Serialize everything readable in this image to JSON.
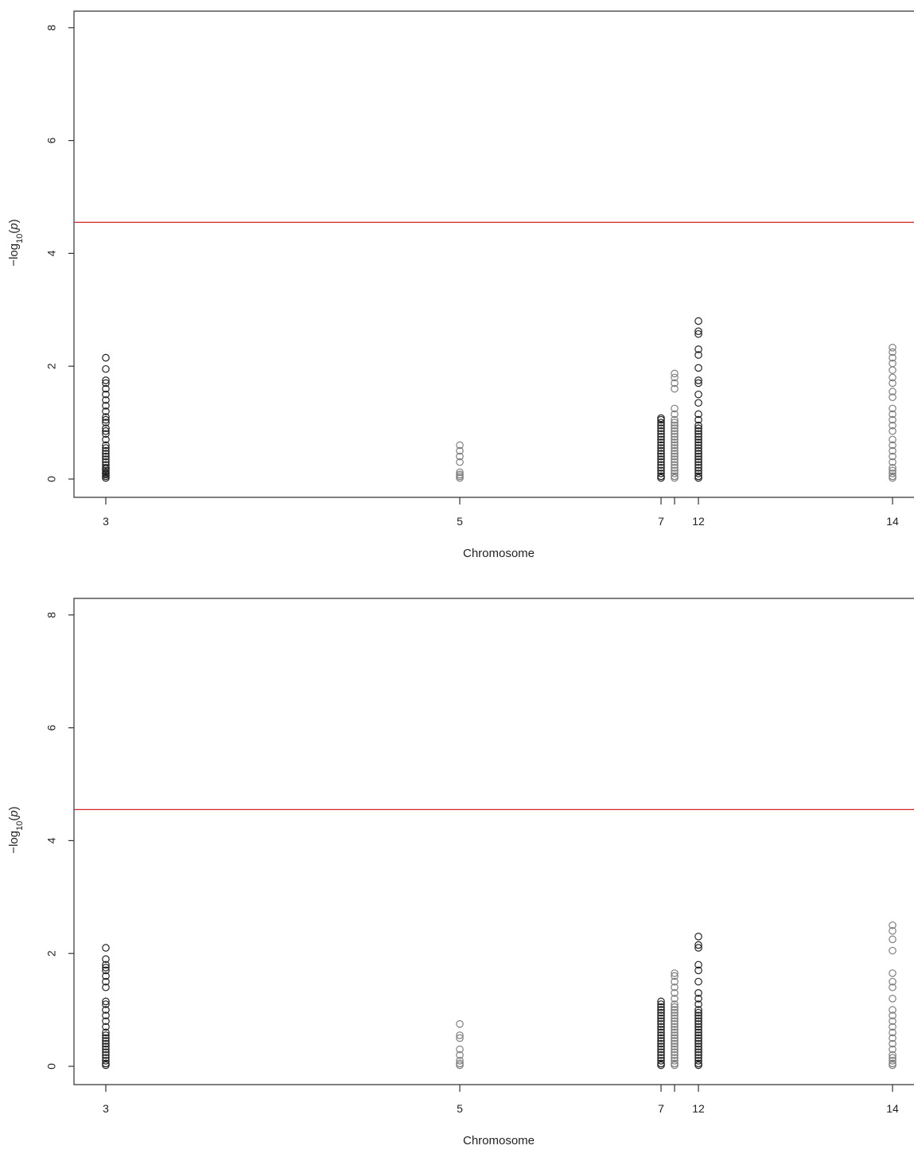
{
  "chart_data": [
    {
      "type": "scatter",
      "subtype": "manhattan",
      "xlabel": "Chromosome",
      "ylabel": "-log10(p)",
      "ylim": [
        0,
        8.3
      ],
      "y_ticks": [
        "0",
        "2",
        "4",
        "6",
        "8"
      ],
      "x_ticks": [
        "3",
        "5",
        "7",
        "",
        "12",
        "14"
      ],
      "threshold": 4.55,
      "threshold_color": "#d62728",
      "series": [
        {
          "chromosome": "3",
          "color": "#222222",
          "values": [
            0.02,
            0.05,
            0.08,
            0.1,
            0.12,
            0.15,
            0.18,
            0.2,
            0.25,
            0.3,
            0.35,
            0.4,
            0.45,
            0.5,
            0.55,
            0.6,
            0.7,
            0.8,
            0.85,
            0.9,
            1.0,
            1.05,
            1.1,
            1.2,
            1.3,
            1.4,
            1.5,
            1.6,
            1.7,
            1.75,
            1.95,
            2.15
          ]
        },
        {
          "chromosome": "5",
          "color": "#7f7f7f",
          "values": [
            0.02,
            0.05,
            0.08,
            0.12,
            0.3,
            0.4,
            0.5,
            0.6
          ]
        },
        {
          "chromosome": "7",
          "color": "#222222",
          "values": [
            0.02,
            0.05,
            0.1,
            0.15,
            0.2,
            0.25,
            0.3,
            0.35,
            0.4,
            0.45,
            0.5,
            0.55,
            0.6,
            0.65,
            0.7,
            0.75,
            0.8,
            0.85,
            0.9,
            0.95,
            1.0,
            1.05,
            1.08
          ]
        },
        {
          "chromosome": "",
          "color": "#7f7f7f",
          "values": [
            0.02,
            0.05,
            0.1,
            0.15,
            0.2,
            0.25,
            0.3,
            0.35,
            0.4,
            0.45,
            0.5,
            0.55,
            0.6,
            0.65,
            0.7,
            0.75,
            0.8,
            0.85,
            0.9,
            0.95,
            1.0,
            1.05,
            1.15,
            1.25,
            1.6,
            1.7,
            1.8,
            1.87
          ]
        },
        {
          "chromosome": "12",
          "color": "#222222",
          "values": [
            0.02,
            0.05,
            0.1,
            0.15,
            0.2,
            0.25,
            0.3,
            0.35,
            0.4,
            0.45,
            0.5,
            0.55,
            0.6,
            0.65,
            0.7,
            0.75,
            0.8,
            0.85,
            0.9,
            0.95,
            1.05,
            1.15,
            1.35,
            1.5,
            1.7,
            1.75,
            1.97,
            2.2,
            2.3,
            2.57,
            2.62,
            2.8
          ]
        },
        {
          "chromosome": "14",
          "color": "#7f7f7f",
          "values": [
            0.02,
            0.05,
            0.1,
            0.15,
            0.2,
            0.3,
            0.4,
            0.5,
            0.6,
            0.7,
            0.85,
            0.95,
            1.05,
            1.15,
            1.25,
            1.45,
            1.55,
            1.7,
            1.8,
            1.93,
            2.05,
            2.15,
            2.25,
            2.33
          ]
        }
      ]
    },
    {
      "type": "scatter",
      "subtype": "manhattan",
      "xlabel": "Chromosome",
      "ylabel": "-log10(p)",
      "ylim": [
        0,
        8.3
      ],
      "y_ticks": [
        "0",
        "2",
        "4",
        "6",
        "8"
      ],
      "x_ticks": [
        "3",
        "5",
        "7",
        "",
        "12",
        "14"
      ],
      "threshold": 4.55,
      "threshold_color": "#d62728",
      "series": [
        {
          "chromosome": "3",
          "color": "#222222",
          "values": [
            0.02,
            0.05,
            0.1,
            0.15,
            0.2,
            0.25,
            0.3,
            0.35,
            0.4,
            0.45,
            0.5,
            0.55,
            0.6,
            0.7,
            0.8,
            0.9,
            1.0,
            1.1,
            1.15,
            1.4,
            1.5,
            1.6,
            1.7,
            1.75,
            1.8,
            1.9,
            2.1
          ]
        },
        {
          "chromosome": "5",
          "color": "#7f7f7f",
          "values": [
            0.02,
            0.05,
            0.1,
            0.2,
            0.3,
            0.5,
            0.55,
            0.75
          ]
        },
        {
          "chromosome": "7",
          "color": "#222222",
          "values": [
            0.02,
            0.05,
            0.1,
            0.15,
            0.2,
            0.25,
            0.3,
            0.35,
            0.4,
            0.45,
            0.5,
            0.55,
            0.6,
            0.65,
            0.7,
            0.75,
            0.8,
            0.85,
            0.9,
            0.95,
            1.0,
            1.05,
            1.1,
            1.15
          ]
        },
        {
          "chromosome": "",
          "color": "#7f7f7f",
          "values": [
            0.02,
            0.05,
            0.1,
            0.15,
            0.2,
            0.25,
            0.3,
            0.35,
            0.4,
            0.45,
            0.5,
            0.55,
            0.6,
            0.65,
            0.7,
            0.75,
            0.8,
            0.85,
            0.9,
            0.95,
            1.0,
            1.05,
            1.1,
            1.2,
            1.3,
            1.4,
            1.5,
            1.6,
            1.65
          ]
        },
        {
          "chromosome": "12",
          "color": "#222222",
          "values": [
            0.02,
            0.05,
            0.1,
            0.15,
            0.2,
            0.25,
            0.3,
            0.35,
            0.4,
            0.45,
            0.5,
            0.55,
            0.6,
            0.65,
            0.7,
            0.75,
            0.8,
            0.85,
            0.9,
            0.95,
            1.0,
            1.1,
            1.2,
            1.3,
            1.5,
            1.7,
            1.8,
            2.1,
            2.15,
            2.3
          ]
        },
        {
          "chromosome": "14",
          "color": "#7f7f7f",
          "values": [
            0.02,
            0.05,
            0.1,
            0.15,
            0.2,
            0.3,
            0.4,
            0.5,
            0.6,
            0.7,
            0.8,
            0.9,
            1.0,
            1.2,
            1.4,
            1.5,
            1.65,
            2.05,
            2.25,
            2.4,
            2.5
          ]
        }
      ]
    }
  ]
}
